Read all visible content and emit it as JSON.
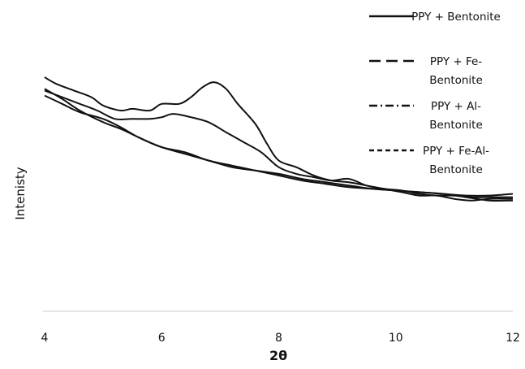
{
  "chart_data": {
    "type": "line",
    "title": "",
    "xlabel": "2θ",
    "ylabel": "Intenisty",
    "xlim": [
      4,
      12
    ],
    "ylim": [
      0,
      100
    ],
    "x_ticks": [
      "4",
      "6",
      "8",
      "10",
      "12"
    ],
    "y_ticks_shown": false,
    "grid": false,
    "legend_position": "top-right",
    "line_color": "#111111",
    "series": [
      {
        "name": "PPY + Bentonite",
        "dash": "solid",
        "x": [
          4.0,
          4.2,
          4.5,
          4.8,
          5.0,
          5.3,
          5.5,
          5.8,
          6.0,
          6.3,
          6.5,
          6.7,
          6.9,
          7.1,
          7.3,
          7.6,
          7.8,
          8.0,
          8.3,
          8.6,
          8.9,
          9.2,
          9.5,
          9.8,
          10.1,
          10.4,
          10.7,
          11.0,
          11.3,
          11.6,
          12.0
        ],
        "y": [
          100,
          96,
          92,
          88,
          83,
          80,
          81,
          80,
          84,
          84,
          88,
          94,
          97,
          93,
          84,
          72,
          60,
          50,
          46,
          41,
          38,
          37,
          35,
          33,
          31,
          29,
          29,
          27,
          26,
          27,
          27
        ]
      },
      {
        "name": "PPY + Fe-\nBentonite",
        "dash": "dash",
        "x": [
          4.0,
          4.3,
          4.6,
          4.9,
          5.2,
          5.5,
          5.8,
          6.0,
          6.2,
          6.5,
          6.8,
          7.1,
          7.4,
          7.7,
          8.0,
          8.3,
          8.6,
          8.9,
          9.2,
          9.5,
          9.8,
          10.1,
          10.4,
          10.7,
          11.0,
          11.3,
          11.6,
          12.0
        ],
        "y": [
          92,
          88,
          84,
          80,
          75,
          75,
          75,
          76,
          78,
          76,
          73,
          67,
          61,
          55,
          46,
          42,
          40,
          38,
          39,
          35,
          33,
          32,
          30,
          29,
          29,
          28,
          28,
          28
        ]
      },
      {
        "name": "PPY + Al-\nBentonite",
        "dash": "dashdot",
        "x": [
          4.0,
          4.3,
          4.6,
          5.0,
          5.3,
          5.6,
          6.0,
          6.4,
          6.8,
          7.2,
          7.6,
          8.0,
          8.4,
          8.8,
          9.2,
          9.6,
          10.0,
          10.4,
          10.8,
          11.2,
          11.6,
          12.0
        ],
        "y": [
          93,
          87,
          80,
          73,
          69,
          64,
          58,
          55,
          50,
          47,
          44,
          41,
          38,
          36,
          34,
          33,
          32,
          31,
          30,
          29,
          29,
          30
        ]
      },
      {
        "name": "PPY + Fe-Al-\nBentonite",
        "dash": "shortdash",
        "x": [
          4.0,
          4.3,
          4.6,
          5.0,
          5.3,
          5.6,
          6.0,
          6.4,
          6.8,
          7.2,
          7.6,
          8.0,
          8.4,
          8.8,
          9.2,
          9.6,
          10.0,
          10.4,
          10.8,
          11.2,
          11.6,
          12.0
        ],
        "y": [
          89,
          84,
          79,
          75,
          70,
          64,
          58,
          54,
          50,
          46,
          44,
          42,
          39,
          37,
          35,
          33,
          32,
          31,
          30,
          28,
          26,
          26
        ]
      }
    ]
  }
}
